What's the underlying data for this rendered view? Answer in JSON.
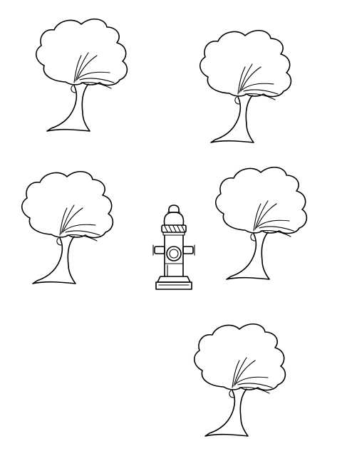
{
  "scene": {
    "background_color": "#ffffff",
    "line_color": "#000000",
    "objects": [
      {
        "kind": "tree-icon"
      },
      {
        "kind": "tree-icon"
      },
      {
        "kind": "tree-icon"
      },
      {
        "kind": "tree-icon"
      },
      {
        "kind": "tree-icon"
      },
      {
        "kind": "fire-hydrant-icon"
      }
    ]
  }
}
